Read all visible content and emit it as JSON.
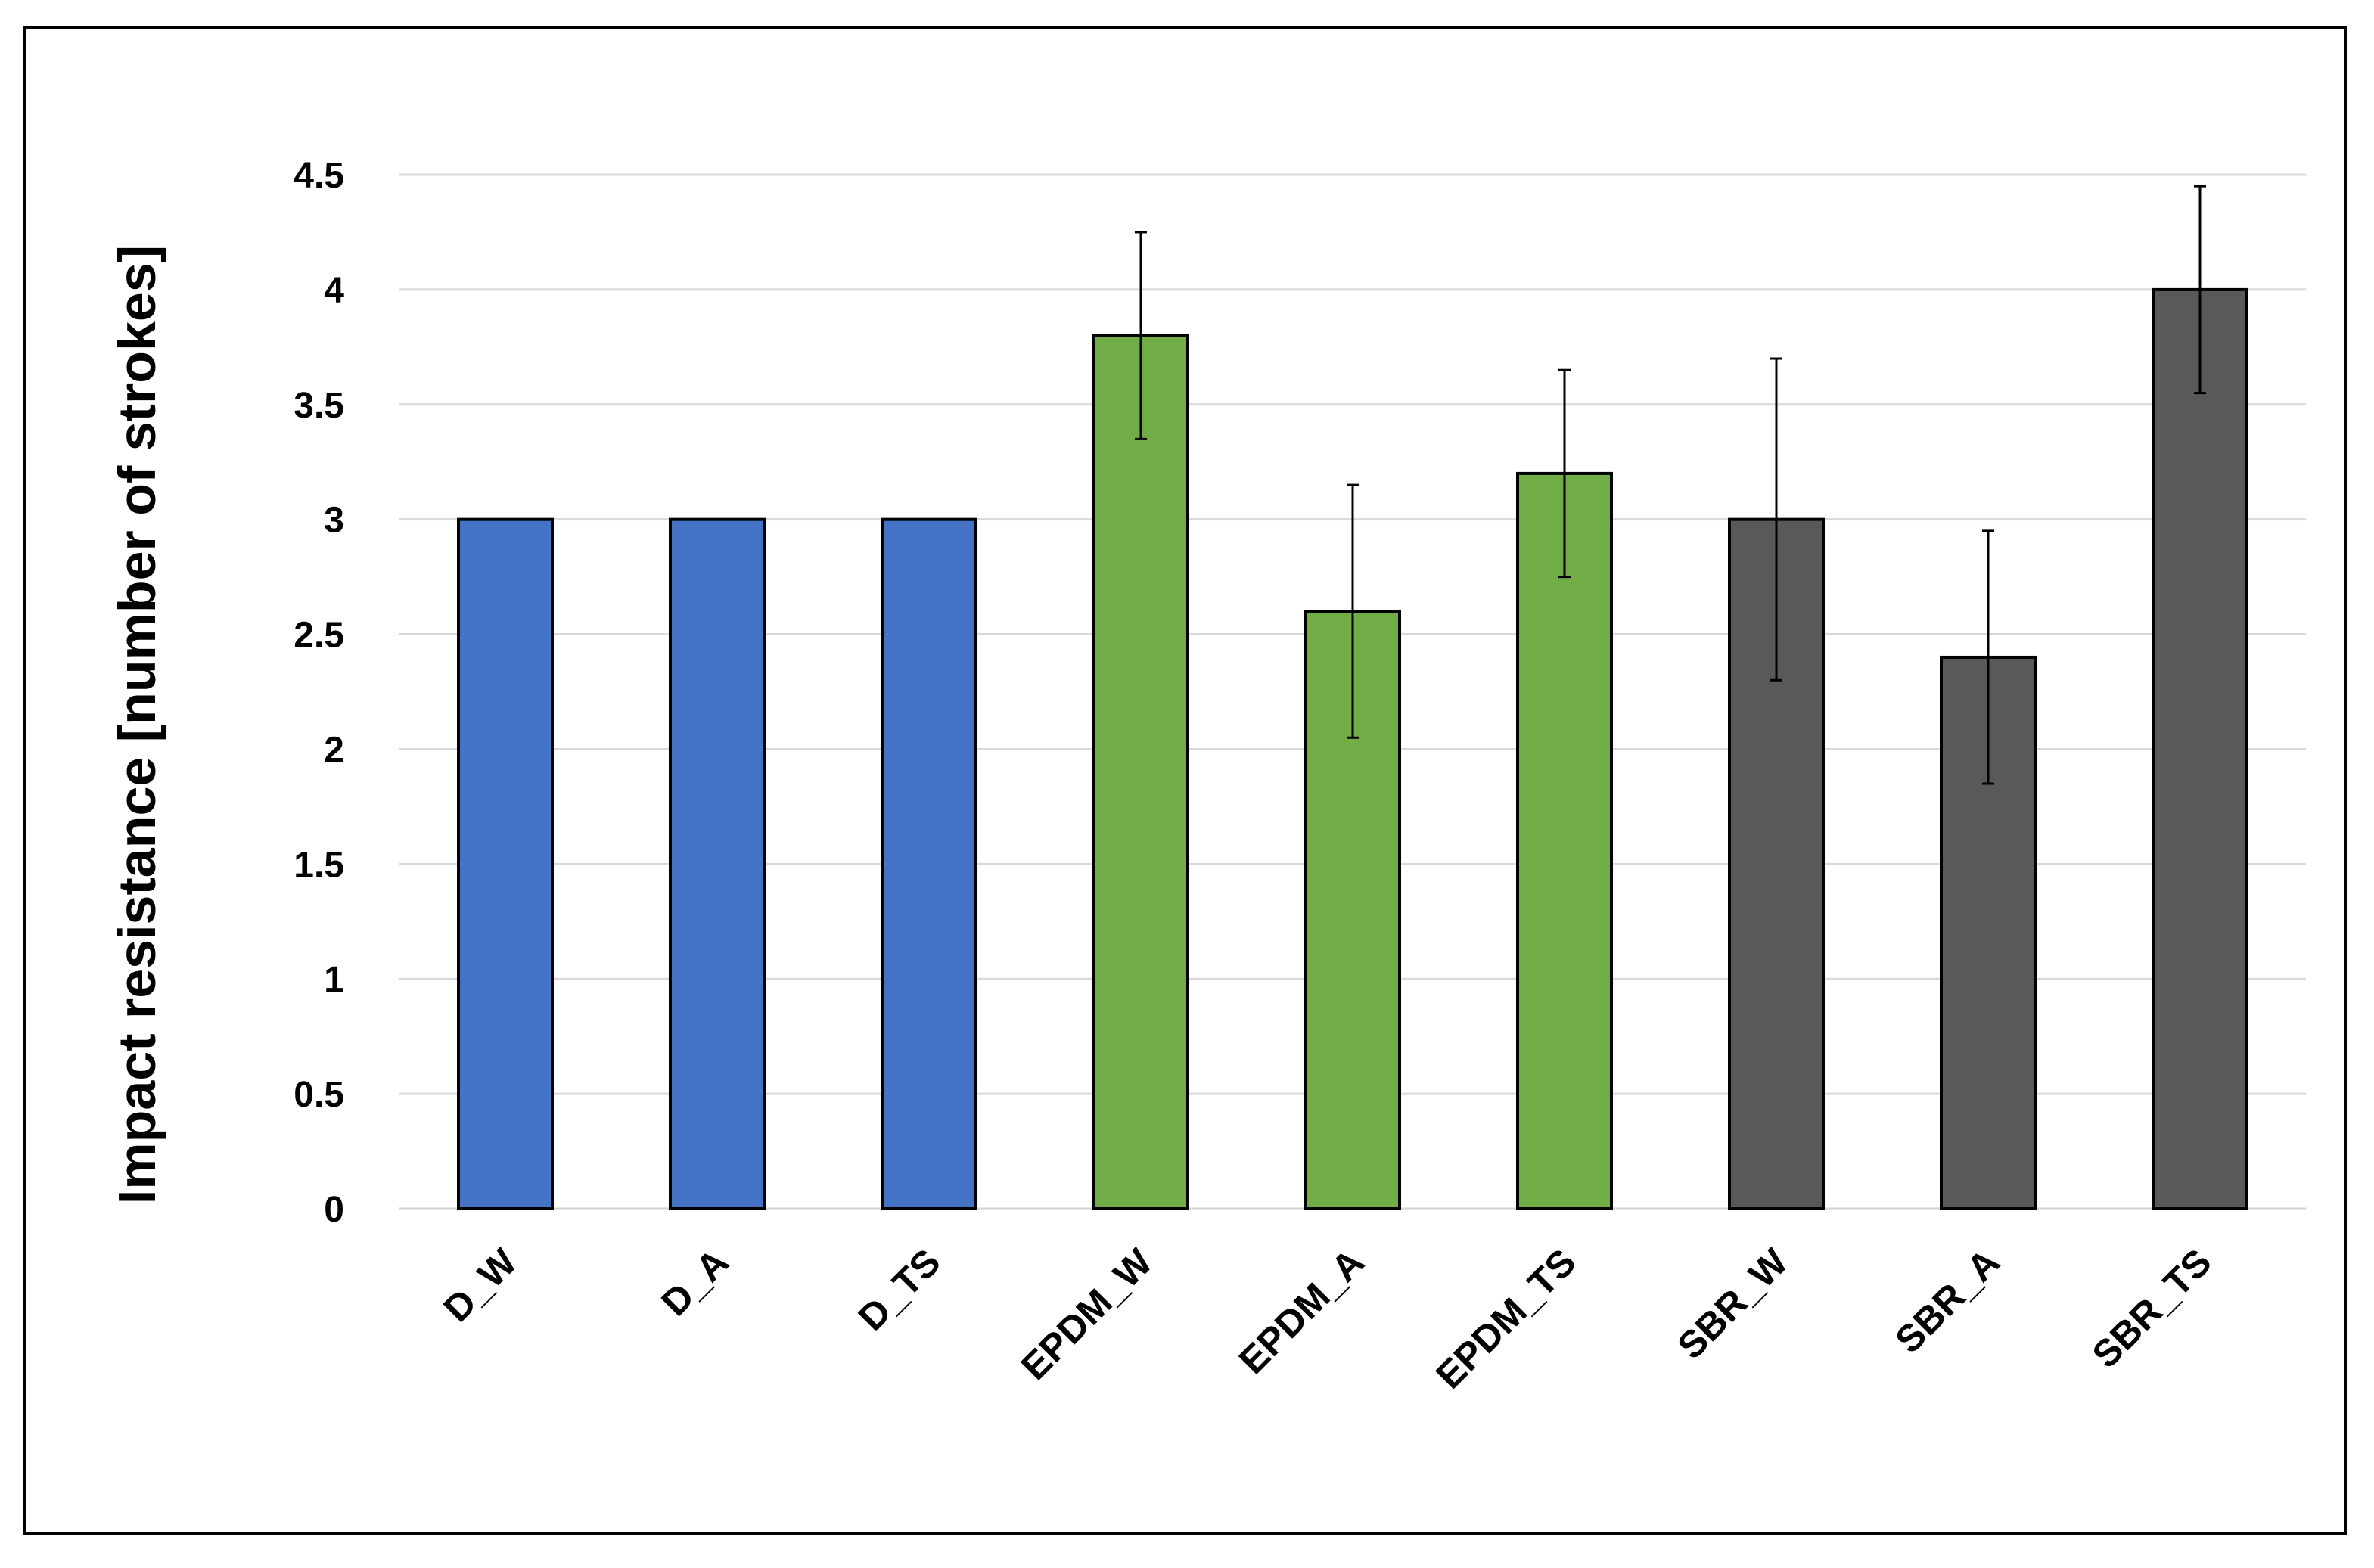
{
  "chart_data": {
    "type": "bar",
    "title": "",
    "xlabel": "",
    "ylabel": "Impact resistance [number of strokes]",
    "ylim": [
      0,
      4.5
    ],
    "yticks": [
      "0",
      "0.5",
      "1",
      "1.5",
      "2",
      "2.5",
      "3",
      "3.5",
      "4",
      "4.5"
    ],
    "grid": true,
    "legend": "none",
    "categories": [
      "D_W",
      "D_A",
      "D_TS",
      "EPDM_W",
      "EPDM_A",
      "EPDM_TS",
      "SBR_W",
      "SBR_A",
      "SBR_TS"
    ],
    "values": [
      3,
      3,
      3,
      3.8,
      2.6,
      3.2,
      3,
      2.4,
      4
    ],
    "errors": [
      null,
      null,
      null,
      0.45,
      0.55,
      0.45,
      0.7,
      0.55,
      0.45
    ],
    "colors": [
      "#4472C4",
      "#4472C4",
      "#4472C4",
      "#70AD47",
      "#70AD47",
      "#70AD47",
      "#595959",
      "#595959",
      "#595959"
    ]
  }
}
